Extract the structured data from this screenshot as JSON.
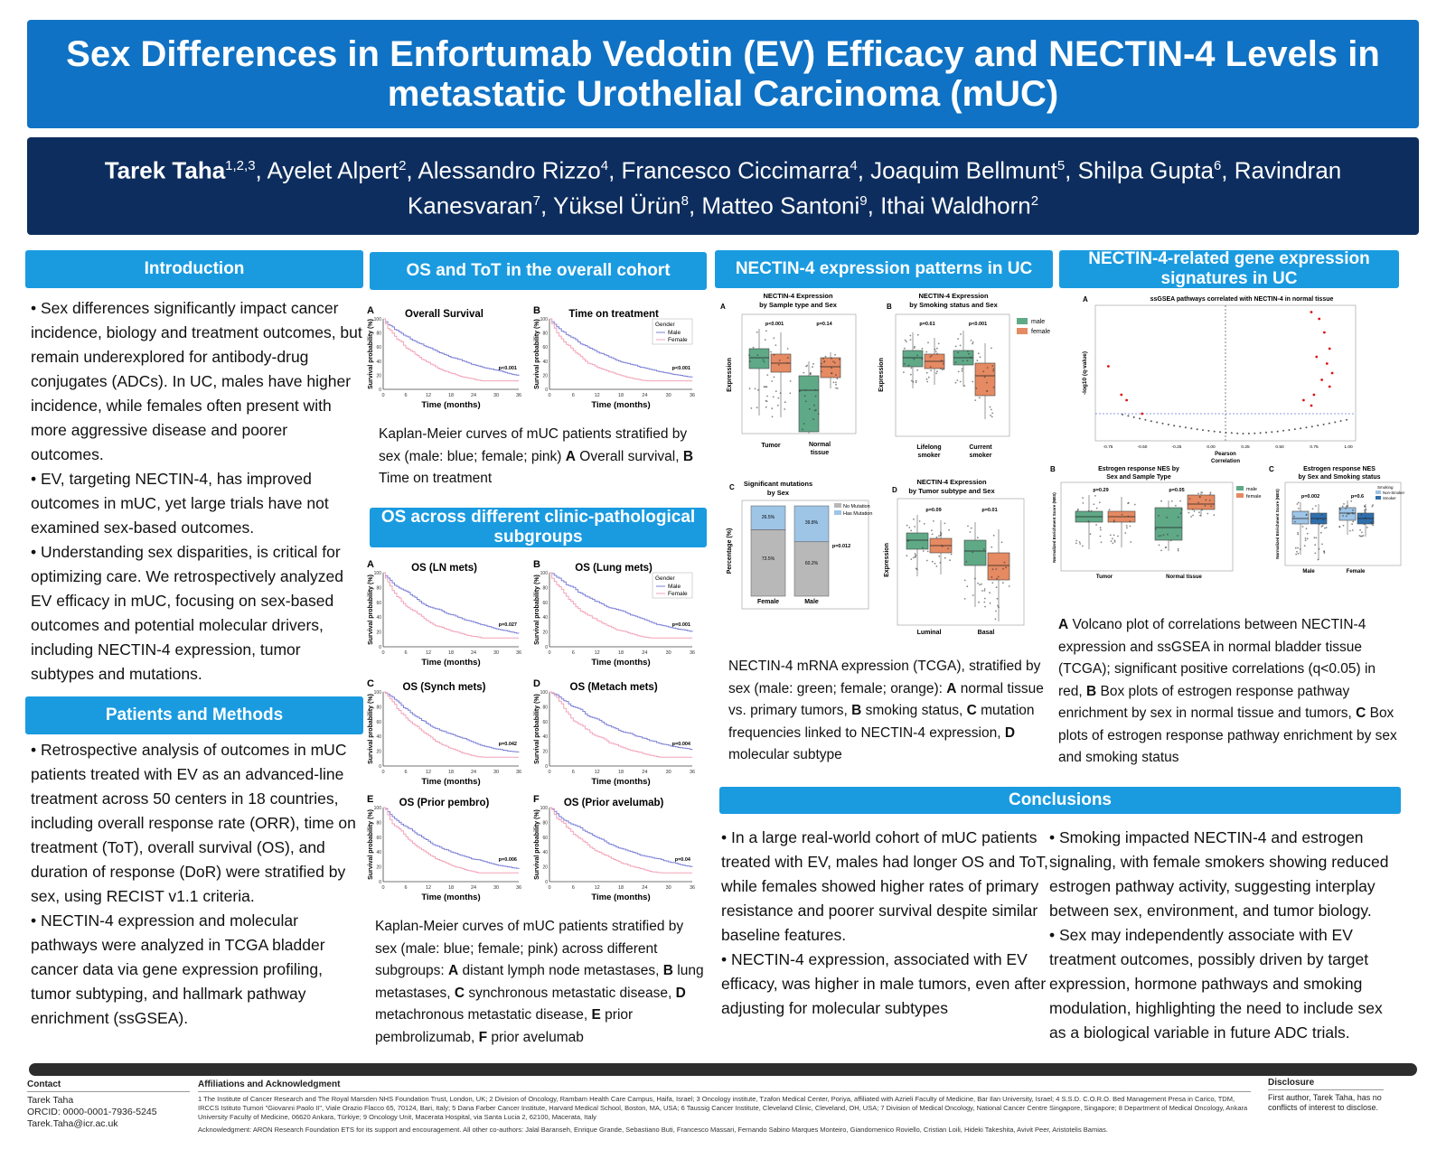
{
  "title": "Sex Differences in Enfortumab Vedotin (EV) Efficacy and NECTIN-4 Levels in metastatic Urothelial Carcinoma (mUC)",
  "authors": {
    "first": "Tarek Taha",
    "first_sup": "1,2,3",
    "rest": [
      {
        "name": ", Ayelet Alpert",
        "sup": "2"
      },
      {
        "name": ", Alessandro Rizzo",
        "sup": "4"
      },
      {
        "name": ", Francesco Ciccimarra",
        "sup": "4"
      },
      {
        "name": ", Joaquim Bellmunt",
        "sup": "5"
      },
      {
        "name": ", Shilpa Gupta",
        "sup": "6"
      },
      {
        "name": ", Ravindran Kanesvaran",
        "sup": "7"
      },
      {
        "name": ", Yüksel Ürün",
        "sup": "8"
      },
      {
        "name": ", Matteo Santoni",
        "sup": "9"
      },
      {
        "name": ", Ithai Waldhorn",
        "sup": "2"
      }
    ]
  },
  "sections": {
    "introduction": {
      "heading": "Introduction",
      "bullets": [
        "• Sex differences significantly impact cancer incidence, biology and treatment outcomes, but remain underexplored for antibody-drug conjugates (ADCs). In UC, males have higher incidence, while females often present with more aggressive disease and poorer outcomes.",
        "• EV, targeting NECTIN-4, has improved outcomes in mUC, yet large trials have not examined sex-based outcomes.",
        "• Understanding sex disparities, is critical for optimizing care. We retrospectively analyzed EV efficacy in mUC, focusing on sex-based outcomes and potential molecular drivers, including NECTIN-4 expression, tumor subtypes and mutations."
      ]
    },
    "methods": {
      "heading": "Patients and Methods",
      "bullets": [
        "• Retrospective analysis of outcomes in mUC patients treated with EV as an advanced-line treatment across 50 centers in 18 countries, including overall response rate (ORR), time on treatment (ToT), overall survival (OS), and duration of response (DoR) were stratified by sex, using RECIST v1.1 criteria.",
        "• NECTIN-4 expression and molecular pathways were analyzed in TCGA bladder cancer data via gene expression profiling, tumor subtyping, and hallmark pathway enrichment (ssGSEA)."
      ]
    },
    "os_tot": {
      "heading": "OS and ToT in the overall cohort",
      "caption": "Kaplan-Meier curves of mUC patients stratified by sex (male: blue; female; pink) A Overall survival, B Time on treatment"
    },
    "os_subgroups": {
      "heading": "OS across different clinic-pathological subgroups",
      "caption": "Kaplan-Meier curves of mUC patients stratified by sex (male: blue; female; pink) across different subgroups: A distant lymph node metastases, B lung metastases, C synchronous metastatic disease, D metachronous metastatic disease, E prior pembrolizumab, F prior avelumab"
    },
    "nectin_expr": {
      "heading": "NECTIN-4 expression patterns in UC",
      "caption": "NECTIN-4 mRNA expression (TCGA), stratified by sex (male: green; female; orange): A normal tissue vs. primary tumors, B smoking status, C mutation frequencies linked to NECTIN-4 expression, D molecular subtype"
    },
    "signatures": {
      "heading": "NECTIN-4-related gene expression signatures in UC",
      "caption": "A Volcano plot of correlations between NECTIN-4 expression and ssGSEA in normal bladder tissue (TCGA); significant positive correlations (q<0.05) in red, B Box plots of estrogen response pathway enrichment by sex in normal tissue and tumors, C Box plots of estrogen response pathway enrichment by sex and smoking status"
    },
    "conclusions": {
      "heading": "Conclusions",
      "left": [
        "• In a large real-world cohort of mUC patients treated with EV, males had longer OS and ToT, while females showed higher rates of primary resistance and poorer survival despite similar baseline features.",
        "• NECTIN-4 expression, associated with EV efficacy, was higher in male tumors, even after adjusting for molecular subtypes"
      ],
      "right": [
        "• Smoking impacted NECTIN-4 and estrogen signaling, with female smokers showing reduced estrogen pathway activity, suggesting interplay between sex, environment, and tumor biology.",
        "• Sex may independently associate with EV treatment outcomes, possibly driven by target expression, hormone pathways and smoking modulation, highlighting the need to include sex as a biological variable in future ADC trials."
      ]
    }
  },
  "km_top": [
    {
      "letter": "A",
      "title": "Overall Survival",
      "p": "p<0.001",
      "legend": false
    },
    {
      "letter": "B",
      "title": "Time on treatment",
      "p": "p<0.001",
      "legend": true
    }
  ],
  "km_sub": [
    {
      "letter": "A",
      "title": "OS (LN mets)",
      "p": "p=0.027",
      "legend": false
    },
    {
      "letter": "B",
      "title": "OS (Lung mets)",
      "p": "p=0.001",
      "legend": true
    },
    {
      "letter": "C",
      "title": "OS (Synch mets)",
      "p": "p=0.042",
      "legend": false
    },
    {
      "letter": "D",
      "title": "OS (Metach mets)",
      "p": "p=0.004",
      "legend": false
    },
    {
      "letter": "E",
      "title": "OS (Prior pembro)",
      "p": "p=0.006",
      "legend": false
    },
    {
      "letter": "F",
      "title": "OS (Prior avelumab)",
      "p": "p=0.04",
      "legend": false
    }
  ],
  "km_labels": {
    "ylabel": "Survival probability (%)",
    "xlabel": "Time (months)",
    "legend_title": "Gender",
    "male": "Male",
    "female": "Female",
    "xticks": [
      "0",
      "6",
      "12",
      "18",
      "24",
      "30",
      "36"
    ],
    "yticks": [
      "100",
      "80",
      "60",
      "40",
      "20",
      "0"
    ]
  },
  "nectin_figs": {
    "a_title": "NECTIN-4 Expression by Sample type and Sex",
    "a_p1": "p<0.001",
    "a_p2": "p=0.14",
    "a_x1": "Tumor",
    "a_x2": "Normal tissue",
    "b_title": "NECTIN-4 Expression by Smoking status and Sex",
    "b_p1": "p=0.61",
    "b_p2": "p<0.001",
    "b_x1": "Lifelong smoker",
    "b_x2": "Current smoker",
    "legend_male": "male",
    "legend_female": "female",
    "c_title": "Significant mutations by Sex",
    "c_legend1": "No Mutation",
    "c_legend2": "Has Mutation",
    "c_p": "p=0.012",
    "c_f_top": "26.5%",
    "c_f_bot": "73.5%",
    "c_m_top": "39.8%",
    "c_m_bot": "60.2%",
    "c_x1": "Female",
    "c_x2": "Male",
    "c_ylabel": "Percentage (%)",
    "d_title": "NECTIN-4 Expression by Tumor subtype and Sex",
    "d_p1": "p=0.09",
    "d_p2": "p=0.01",
    "d_x1": "Luminal",
    "d_x2": "Basal",
    "ylabel": "Expression"
  },
  "sig_figs": {
    "a_title": "ssGSEA pathways correlated with NECTIN-4 in normal tissue",
    "a_ylabel": "-log10 (q-value)",
    "a_xlabel": "Pearson Correlation",
    "a_xticks": [
      "-0.75",
      "-0.50",
      "-0.25",
      "0.00",
      "0.25",
      "0.50",
      "0.75",
      "1.00"
    ],
    "b_title": "Estrogen response NES by Sex and Sample Type",
    "b_p1": "p=0.29",
    "b_p2": "p=0.05",
    "b_x1": "Tumor",
    "b_x2": "Normal tissue",
    "c_title": "Estrogen response NES by Sex and Smoking status",
    "c_p1": "p=0.002",
    "c_p2": "p=0.6",
    "c_x1": "Male",
    "c_x2": "Female",
    "nes_ylabel": "Normalized Enrichment Score (NES)",
    "legend_male": "male",
    "legend_female": "female",
    "smoking_title": "Smoking",
    "smoking_non": "Non-Smoker",
    "smoking_yes": "Smoker"
  },
  "footer": {
    "contact_head": "Contact",
    "contact_name": "Tarek Taha",
    "contact_orcid": "ORCID: 0000-0001-7936-5245",
    "contact_email": "Tarek.Taha@icr.ac.uk",
    "aff_head": "Affiliations and Acknowledgment",
    "aff_text": "1 The Institute of Cancer Research and The Royal Marsden NHS Foundation Trust, London, UK; 2 Division of Oncology, Rambam Health Care Campus, Haifa, Israel; 3 Oncology institute, Tzafon Medical Center, Poriya, affiliated with Azrieli Faculty of Medicine, Bar Ilan University, Israel; 4 S.S.D. C.O.R.O. Bed Management Presa in Carico, TDM, IRCCS Istituto Tumori \"Giovanni Paolo II\", Viale Orazio Flacco 65, 70124, Bari, Italy; 5 Dana Farber Cancer Institute, Harvard Medical School, Boston, MA, USA; 6 Taussig Cancer Institute, Cleveland Clinic, Cleveland, OH, USA; 7 Division of Medical Oncology, National Cancer Centre Singapore, Singapore; 8 Department of Medical Oncology, Ankara University Faculty of Medicine, 06620 Ankara, Türkiye; 9 Oncology Unit, Macerata Hospital, via Santa Lucia 2, 62100, Macerata, Italy",
    "ack_text": "Acknowledgment: ARON Research Foundation ETS for its support and encouragement. All other co-authors: Jalal Baranseh, Enrique Grande, Sebastiano Buti, Francesco Massari, Fernando Sabino Marques Monteiro, Giandomenico Roviello, Cristian Loili, Hideki Takeshita, Avivit Peer, Aristotelis Bamias.",
    "disc_head": "Disclosure",
    "disc_text": "First author, Tarek Taha, has no conflicts of interest to disclose."
  },
  "colors": {
    "title_bg": "#0f72c4",
    "author_bg": "#0d2d5e",
    "section_head": "#1a9be0",
    "male_km": "#7b7fd6",
    "female_km": "#f3a3b8",
    "male_box": "#5fa987",
    "female_box": "#e58a62"
  }
}
